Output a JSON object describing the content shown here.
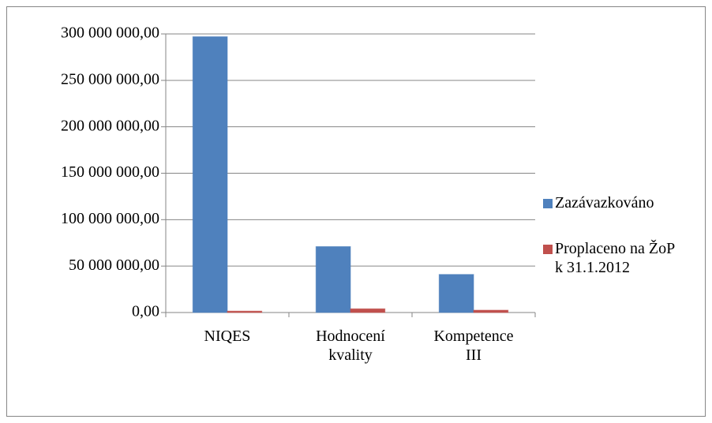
{
  "chart_data": {
    "type": "bar",
    "categories": [
      "NIQES",
      "Hodnocení kvality",
      "Kompetence III"
    ],
    "series": [
      {
        "name": "Zazávazkováno",
        "color": "#4f81bd",
        "values": [
          297000000,
          71000000,
          41000000
        ]
      },
      {
        "name": "Proplaceno na ŽoP k 31.1.2012",
        "color": "#c0504d",
        "values": [
          1500000,
          4000000,
          2500000
        ]
      }
    ],
    "ylim": [
      0,
      300000000
    ],
    "yticks": [
      {
        "value": 0,
        "label": "0,00"
      },
      {
        "value": 50000000,
        "label": "50 000 000,00"
      },
      {
        "value": 100000000,
        "label": "100 000 000,00"
      },
      {
        "value": 150000000,
        "label": "150 000 000,00"
      },
      {
        "value": 200000000,
        "label": "200 000 000,00"
      },
      {
        "value": 250000000,
        "label": "250 000 000,00"
      },
      {
        "value": 300000000,
        "label": "300 000 000,00"
      }
    ],
    "grid": true,
    "legend": "right"
  }
}
